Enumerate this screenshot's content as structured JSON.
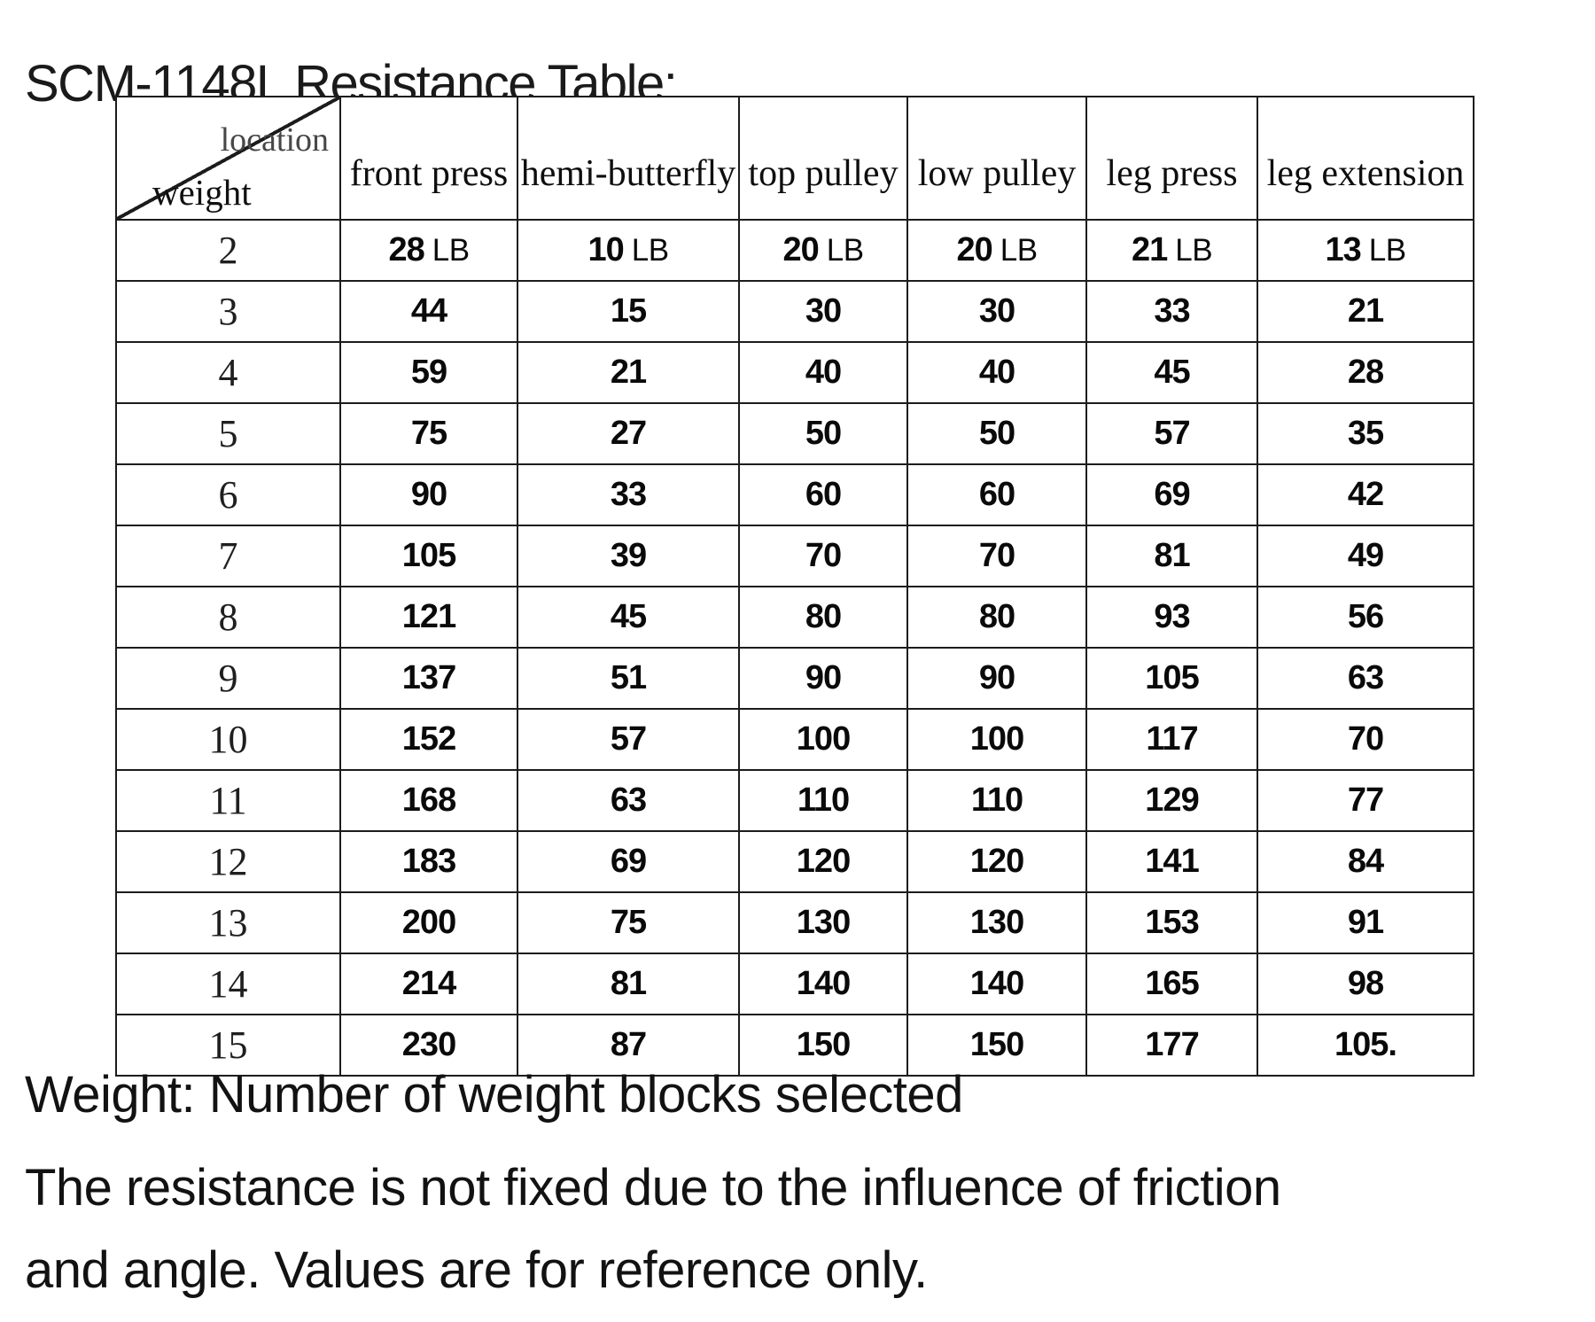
{
  "title": "SCM-1148L Resistance Table:",
  "table": {
    "corner": {
      "top_label": "location",
      "bottom_label": "weight"
    },
    "columns": [
      "front press",
      "hemi-butterfly",
      "top pulley",
      "low pulley",
      "leg press",
      "leg extension"
    ],
    "unit": "LB",
    "rows": [
      {
        "weight": "2",
        "unit": "LB",
        "values": [
          "28",
          "10",
          "20",
          "20",
          "21",
          "13"
        ]
      },
      {
        "weight": "3",
        "values": [
          "44",
          "15",
          "30",
          "30",
          "33",
          "21"
        ]
      },
      {
        "weight": "4",
        "values": [
          "59",
          "21",
          "40",
          "40",
          "45",
          "28"
        ]
      },
      {
        "weight": "5",
        "values": [
          "75",
          "27",
          "50",
          "50",
          "57",
          "35"
        ]
      },
      {
        "weight": "6",
        "values": [
          "90",
          "33",
          "60",
          "60",
          "69",
          "42"
        ]
      },
      {
        "weight": "7",
        "values": [
          "105",
          "39",
          "70",
          "70",
          "81",
          "49"
        ]
      },
      {
        "weight": "8",
        "values": [
          "121",
          "45",
          "80",
          "80",
          "93",
          "56"
        ]
      },
      {
        "weight": "9",
        "values": [
          "137",
          "51",
          "90",
          "90",
          "105",
          "63"
        ]
      },
      {
        "weight": "10",
        "values": [
          "152",
          "57",
          "100",
          "100",
          "117",
          "70"
        ]
      },
      {
        "weight": "11",
        "values": [
          "168",
          "63",
          "110",
          "110",
          "129",
          "77"
        ]
      },
      {
        "weight": "12",
        "values": [
          "183",
          "69",
          "120",
          "120",
          "141",
          "84"
        ]
      },
      {
        "weight": "13",
        "values": [
          "200",
          "75",
          "130",
          "130",
          "153",
          "91"
        ]
      },
      {
        "weight": "14",
        "values": [
          "214",
          "81",
          "140",
          "140",
          "165",
          "98"
        ]
      },
      {
        "weight": "15",
        "values": [
          "230",
          "87",
          "150",
          "150",
          "177",
          "105."
        ]
      }
    ]
  },
  "notes": [
    "Weight: Number of weight blocks selected",
    "The resistance is not fixed due to the influence of friction",
    "and angle. Values are for reference only."
  ],
  "colors": {
    "background": "#ffffff",
    "border": "#1c1c1c",
    "text": "#121212",
    "location_label": "#474747"
  }
}
